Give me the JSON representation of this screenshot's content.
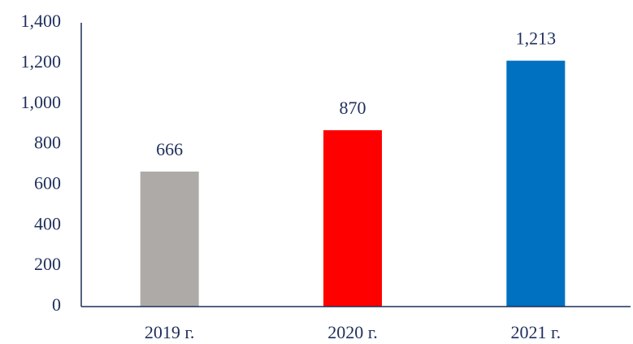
{
  "chart_data": {
    "type": "bar",
    "categories": [
      "2019 г.",
      "2020 г.",
      "2021 г."
    ],
    "values": [
      666,
      870,
      1213
    ],
    "value_labels": [
      "666",
      "870",
      "1,213"
    ],
    "colors": [
      "#aeaaa8",
      "#ff0000",
      "#0070c0"
    ],
    "ylim": [
      0,
      1400
    ],
    "yticks": [
      0,
      200,
      400,
      600,
      800,
      {
        "value": 1000,
        "label": "1,000"
      },
      {
        "value": 1200,
        "label": "1,200"
      },
      {
        "value": 1400,
        "label": "1,400"
      }
    ],
    "grid": false
  }
}
